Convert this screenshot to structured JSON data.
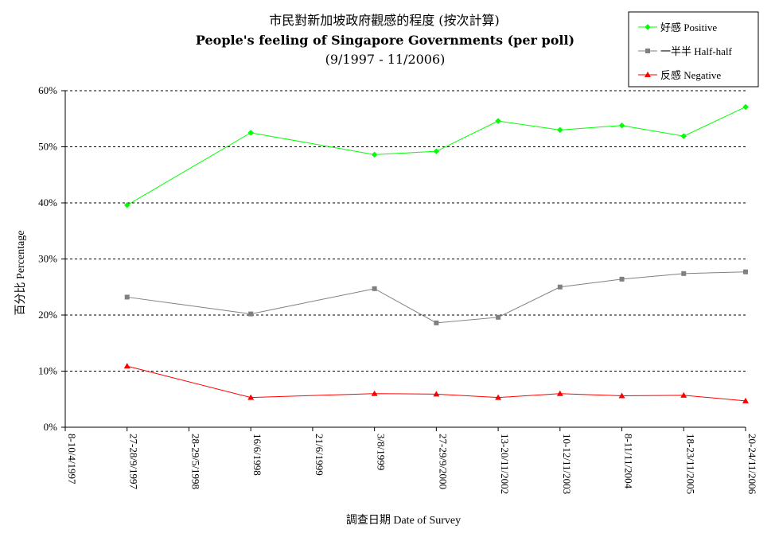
{
  "chart_data": {
    "type": "line",
    "title": "市民對新加坡政府觀感的程度 (按次計算)",
    "subtitle": "People's feeling of Singapore Governments (per poll)",
    "period": "(9/1997 - 11/2006)",
    "xlabel": "調查日期 Date of Survey",
    "ylabel": "百分比 Percentage",
    "ylim": [
      0,
      60
    ],
    "ytick_step": 10,
    "yticks": [
      "0%",
      "10%",
      "20%",
      "30%",
      "40%",
      "50%",
      "60%"
    ],
    "grid": true,
    "legend_position": "top-right",
    "categories": [
      "8-10/4/1997",
      "27-28/9/1997",
      "28-29/5/1998",
      "16/6/1998",
      "21/6/1999",
      "3/8/1999",
      "27-29/9/2000",
      "13-20/11/2002",
      "10-12/11/2003",
      "8-11/11/2004",
      "18-23/11/2005",
      "20-24/11/2006"
    ],
    "series": [
      {
        "name": "好感 Positive",
        "color": "#00ff00",
        "marker": "diamond",
        "values": [
          null,
          39.6,
          null,
          52.5,
          null,
          48.6,
          49.2,
          54.6,
          53.0,
          53.8,
          51.9,
          57.1
        ]
      },
      {
        "name": "一半半 Half-half",
        "color": "#808080",
        "marker": "square",
        "values": [
          null,
          23.2,
          null,
          20.2,
          null,
          24.7,
          18.6,
          19.6,
          25.0,
          26.4,
          27.4,
          27.7
        ]
      },
      {
        "name": "反感 Negative",
        "color": "#ff0000",
        "marker": "triangle",
        "values": [
          null,
          10.9,
          null,
          5.3,
          null,
          6.0,
          5.9,
          5.3,
          6.0,
          5.6,
          5.7,
          4.7
        ]
      }
    ]
  }
}
